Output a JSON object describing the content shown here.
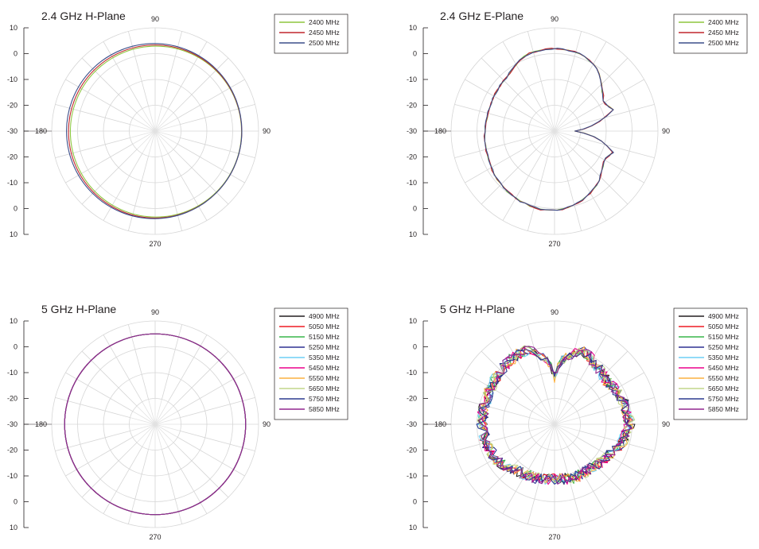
{
  "chart_data": [
    {
      "type": "polar",
      "title": "2.4 GHz H-Plane",
      "radial_ticks": [
        "10",
        "0",
        "-10",
        "-20",
        "-30",
        "-20",
        "-10",
        "0",
        "10"
      ],
      "angle_labels": {
        "top": "90",
        "left": "180",
        "right": "90",
        "bottom": "270"
      },
      "rlim": [
        -30,
        10
      ],
      "grid": true,
      "legend_position": "top-right",
      "series": [
        {
          "name": "2400 MHz",
          "color": "#8dc63f",
          "shape": "circle",
          "r_dbi": 3.1,
          "offset": [
            1.0,
            0.6
          ]
        },
        {
          "name": "2450 MHz",
          "color": "#c1272d",
          "shape": "circle",
          "r_dbi": 3.5,
          "offset": [
            0.0,
            0.5
          ]
        },
        {
          "name": "2500 MHz",
          "color": "#3c4e8a",
          "shape": "circle",
          "r_dbi": 3.9,
          "offset": [
            -1.2,
            0.0
          ]
        }
      ]
    },
    {
      "type": "polar",
      "title": "2.4 GHz E-Plane",
      "radial_ticks": [
        "10",
        "0",
        "-10",
        "-20",
        "-30",
        "-20",
        "-10",
        "0",
        "10"
      ],
      "angle_labels": {
        "top": "90",
        "left": "180",
        "right": "90",
        "bottom": "270"
      },
      "rlim": [
        -30,
        10
      ],
      "grid": true,
      "legend_position": "top-right",
      "series": [
        {
          "name": "2400 MHz",
          "color": "#8dc63f",
          "shape": "pattern",
          "pattern": "eplane",
          "jitter": 0.25,
          "seed": 3
        },
        {
          "name": "2450 MHz",
          "color": "#c1272d",
          "shape": "pattern",
          "pattern": "eplane",
          "jitter": 0.3,
          "seed": 7
        },
        {
          "name": "2500 MHz",
          "color": "#3c4e8a",
          "shape": "pattern",
          "pattern": "eplane",
          "jitter": 0.3,
          "seed": 11
        }
      ]
    },
    {
      "type": "polar",
      "title": "5 GHz H-Plane",
      "radial_ticks": [
        "10",
        "0",
        "-10",
        "-20",
        "-30",
        "-20",
        "-10",
        "0",
        "10"
      ],
      "angle_labels": {
        "top": "90",
        "left": "180",
        "right": "90",
        "bottom": "270"
      },
      "rlim": [
        -30,
        10
      ],
      "grid": true,
      "legend_position": "top-right",
      "series": [
        {
          "name": "4900 MHz",
          "color": "#231f20",
          "shape": "circle",
          "r_dbi": 5.0,
          "offset": [
            0,
            0
          ]
        },
        {
          "name": "5050 MHz",
          "color": "#ed1c24",
          "shape": "circle",
          "r_dbi": 5.0,
          "offset": [
            0,
            0
          ]
        },
        {
          "name": "5150 MHz",
          "color": "#39b54a",
          "shape": "circle",
          "r_dbi": 5.0,
          "offset": [
            0,
            0
          ]
        },
        {
          "name": "5250 MHz",
          "color": "#2e3192",
          "shape": "circle",
          "r_dbi": 5.0,
          "offset": [
            0,
            0
          ]
        },
        {
          "name": "5350 MHz",
          "color": "#6dcff6",
          "shape": "circle",
          "r_dbi": 5.0,
          "offset": [
            0,
            0
          ]
        },
        {
          "name": "5450 MHz",
          "color": "#ec008c",
          "shape": "circle",
          "r_dbi": 5.0,
          "offset": [
            0,
            0
          ]
        },
        {
          "name": "5550 MHz",
          "color": "#fbb040",
          "shape": "circle",
          "r_dbi": 5.0,
          "offset": [
            0,
            0
          ]
        },
        {
          "name": "5650 MHz",
          "color": "#c2d68a",
          "shape": "circle",
          "r_dbi": 5.0,
          "offset": [
            0,
            0
          ]
        },
        {
          "name": "5750 MHz",
          "color": "#2b3a8f",
          "shape": "circle",
          "r_dbi": 5.0,
          "offset": [
            0,
            0
          ]
        },
        {
          "name": "5850 MHz",
          "color": "#92278f",
          "shape": "circle",
          "r_dbi": 5.0,
          "offset": [
            0,
            0
          ]
        }
      ]
    },
    {
      "type": "polar",
      "title": "5 GHz H-Plane",
      "radial_ticks": [
        "10",
        "0",
        "-10",
        "-20",
        "-30",
        "-20",
        "-10",
        "0",
        "10"
      ],
      "angle_labels": {
        "top": "90",
        "left": "180",
        "right": "90",
        "bottom": "270"
      },
      "rlim": [
        -30,
        10
      ],
      "grid": true,
      "legend_position": "top-right",
      "series": [
        {
          "name": "4900 MHz",
          "color": "#231f20",
          "shape": "pattern",
          "pattern": "h5",
          "jitter": 2.2,
          "seed": 13
        },
        {
          "name": "5050 MHz",
          "color": "#ed1c24",
          "shape": "pattern",
          "pattern": "h5",
          "jitter": 2.2,
          "seed": 17
        },
        {
          "name": "5150 MHz",
          "color": "#39b54a",
          "shape": "pattern",
          "pattern": "h5",
          "jitter": 2.2,
          "seed": 19
        },
        {
          "name": "5250 MHz",
          "color": "#2e3192",
          "shape": "pattern",
          "pattern": "h5",
          "jitter": 2.2,
          "seed": 23
        },
        {
          "name": "5350 MHz",
          "color": "#6dcff6",
          "shape": "pattern",
          "pattern": "h5",
          "jitter": 2.2,
          "seed": 29
        },
        {
          "name": "5450 MHz",
          "color": "#ec008c",
          "shape": "pattern",
          "pattern": "h5",
          "jitter": 2.2,
          "seed": 31
        },
        {
          "name": "5550 MHz",
          "color": "#fbb040",
          "shape": "pattern",
          "pattern": "h5",
          "jitter": 2.2,
          "seed": 37
        },
        {
          "name": "5650 MHz",
          "color": "#c2d68a",
          "shape": "pattern",
          "pattern": "h5",
          "jitter": 2.2,
          "seed": 41
        },
        {
          "name": "5750 MHz",
          "color": "#2b3a8f",
          "shape": "pattern",
          "pattern": "h5",
          "jitter": 2.2,
          "seed": 43
        },
        {
          "name": "5850 MHz",
          "color": "#92278f",
          "shape": "pattern",
          "pattern": "h5",
          "jitter": 2.2,
          "seed": 47
        }
      ]
    }
  ]
}
